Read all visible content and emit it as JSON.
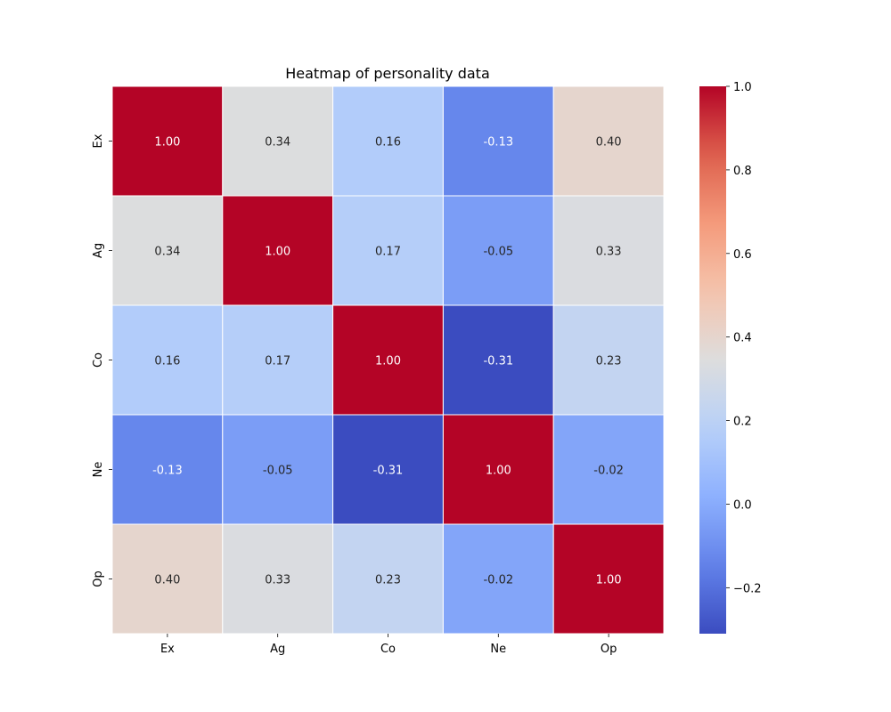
{
  "chart_data": {
    "type": "heatmap",
    "title": "Heatmap of personality data",
    "xlabel": "",
    "ylabel": "",
    "x_categories": [
      "Ex",
      "Ag",
      "Co",
      "Ne",
      "Op"
    ],
    "y_categories": [
      "Ex",
      "Ag",
      "Co",
      "Ne",
      "Op"
    ],
    "values": [
      [
        1.0,
        0.34,
        0.16,
        -0.13,
        0.4
      ],
      [
        0.34,
        1.0,
        0.17,
        -0.05,
        0.33
      ],
      [
        0.16,
        0.17,
        1.0,
        -0.31,
        0.23
      ],
      [
        -0.13,
        -0.05,
        -0.31,
        1.0,
        -0.02
      ],
      [
        0.4,
        0.33,
        0.23,
        -0.02,
        1.0
      ]
    ],
    "cell_labels": [
      [
        "1.00",
        "0.34",
        "0.16",
        "-0.13",
        "0.40"
      ],
      [
        "0.34",
        "1.00",
        "0.17",
        "-0.05",
        "0.33"
      ],
      [
        "0.16",
        "0.17",
        "1.00",
        "-0.31",
        "0.23"
      ],
      [
        "-0.13",
        "-0.05",
        "-0.31",
        "1.00",
        "-0.02"
      ],
      [
        "0.40",
        "0.33",
        "0.23",
        "-0.02",
        "1.00"
      ]
    ],
    "colormap": "coolwarm",
    "value_range": [
      -0.31,
      1.0
    ],
    "colorbar_ticks": [
      -0.2,
      0.0,
      0.2,
      0.4,
      0.6,
      0.8,
      1.0
    ],
    "colorbar_tick_labels": [
      "−0.2",
      "0.0",
      "0.2",
      "0.4",
      "0.6",
      "0.8",
      "1.0"
    ],
    "colorbar_placement": "right",
    "cell_border_color": "#ffffff"
  }
}
